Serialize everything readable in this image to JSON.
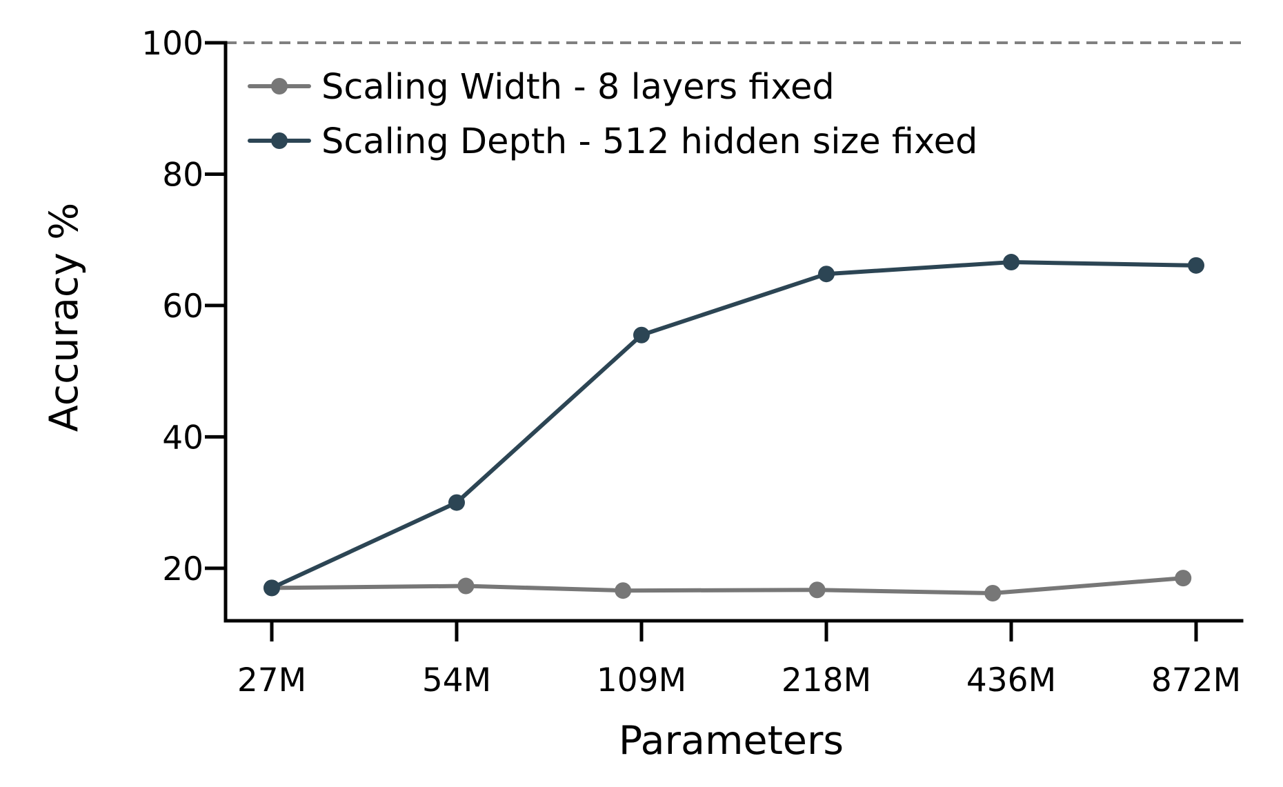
{
  "chart_data": {
    "type": "line",
    "title": "",
    "xlabel": "Parameters",
    "ylabel": "Accuracy %",
    "categories": [
      "27M",
      "54M",
      "109M",
      "218M",
      "436M",
      "872M"
    ],
    "ylim": [
      12,
      100
    ],
    "yticks": [
      20,
      40,
      60,
      80,
      100
    ],
    "reference_line": {
      "y": 100,
      "style": "dashed",
      "color": "#808080"
    },
    "grid": false,
    "legend_position": "top-left",
    "series": [
      {
        "name": "Scaling Width - 8 layers fixed",
        "color": "#777777",
        "x": [
          0,
          1.05,
          1.9,
          2.95,
          3.9,
          4.93
        ],
        "values": [
          17.0,
          17.3,
          16.6,
          16.7,
          16.2,
          18.5
        ]
      },
      {
        "name": "Scaling Depth - 512 hidden size fixed",
        "color": "#2c4554",
        "x": [
          0,
          1,
          2,
          3,
          4,
          5
        ],
        "values": [
          17.0,
          30.0,
          55.5,
          64.8,
          66.6,
          66.1
        ]
      }
    ]
  }
}
